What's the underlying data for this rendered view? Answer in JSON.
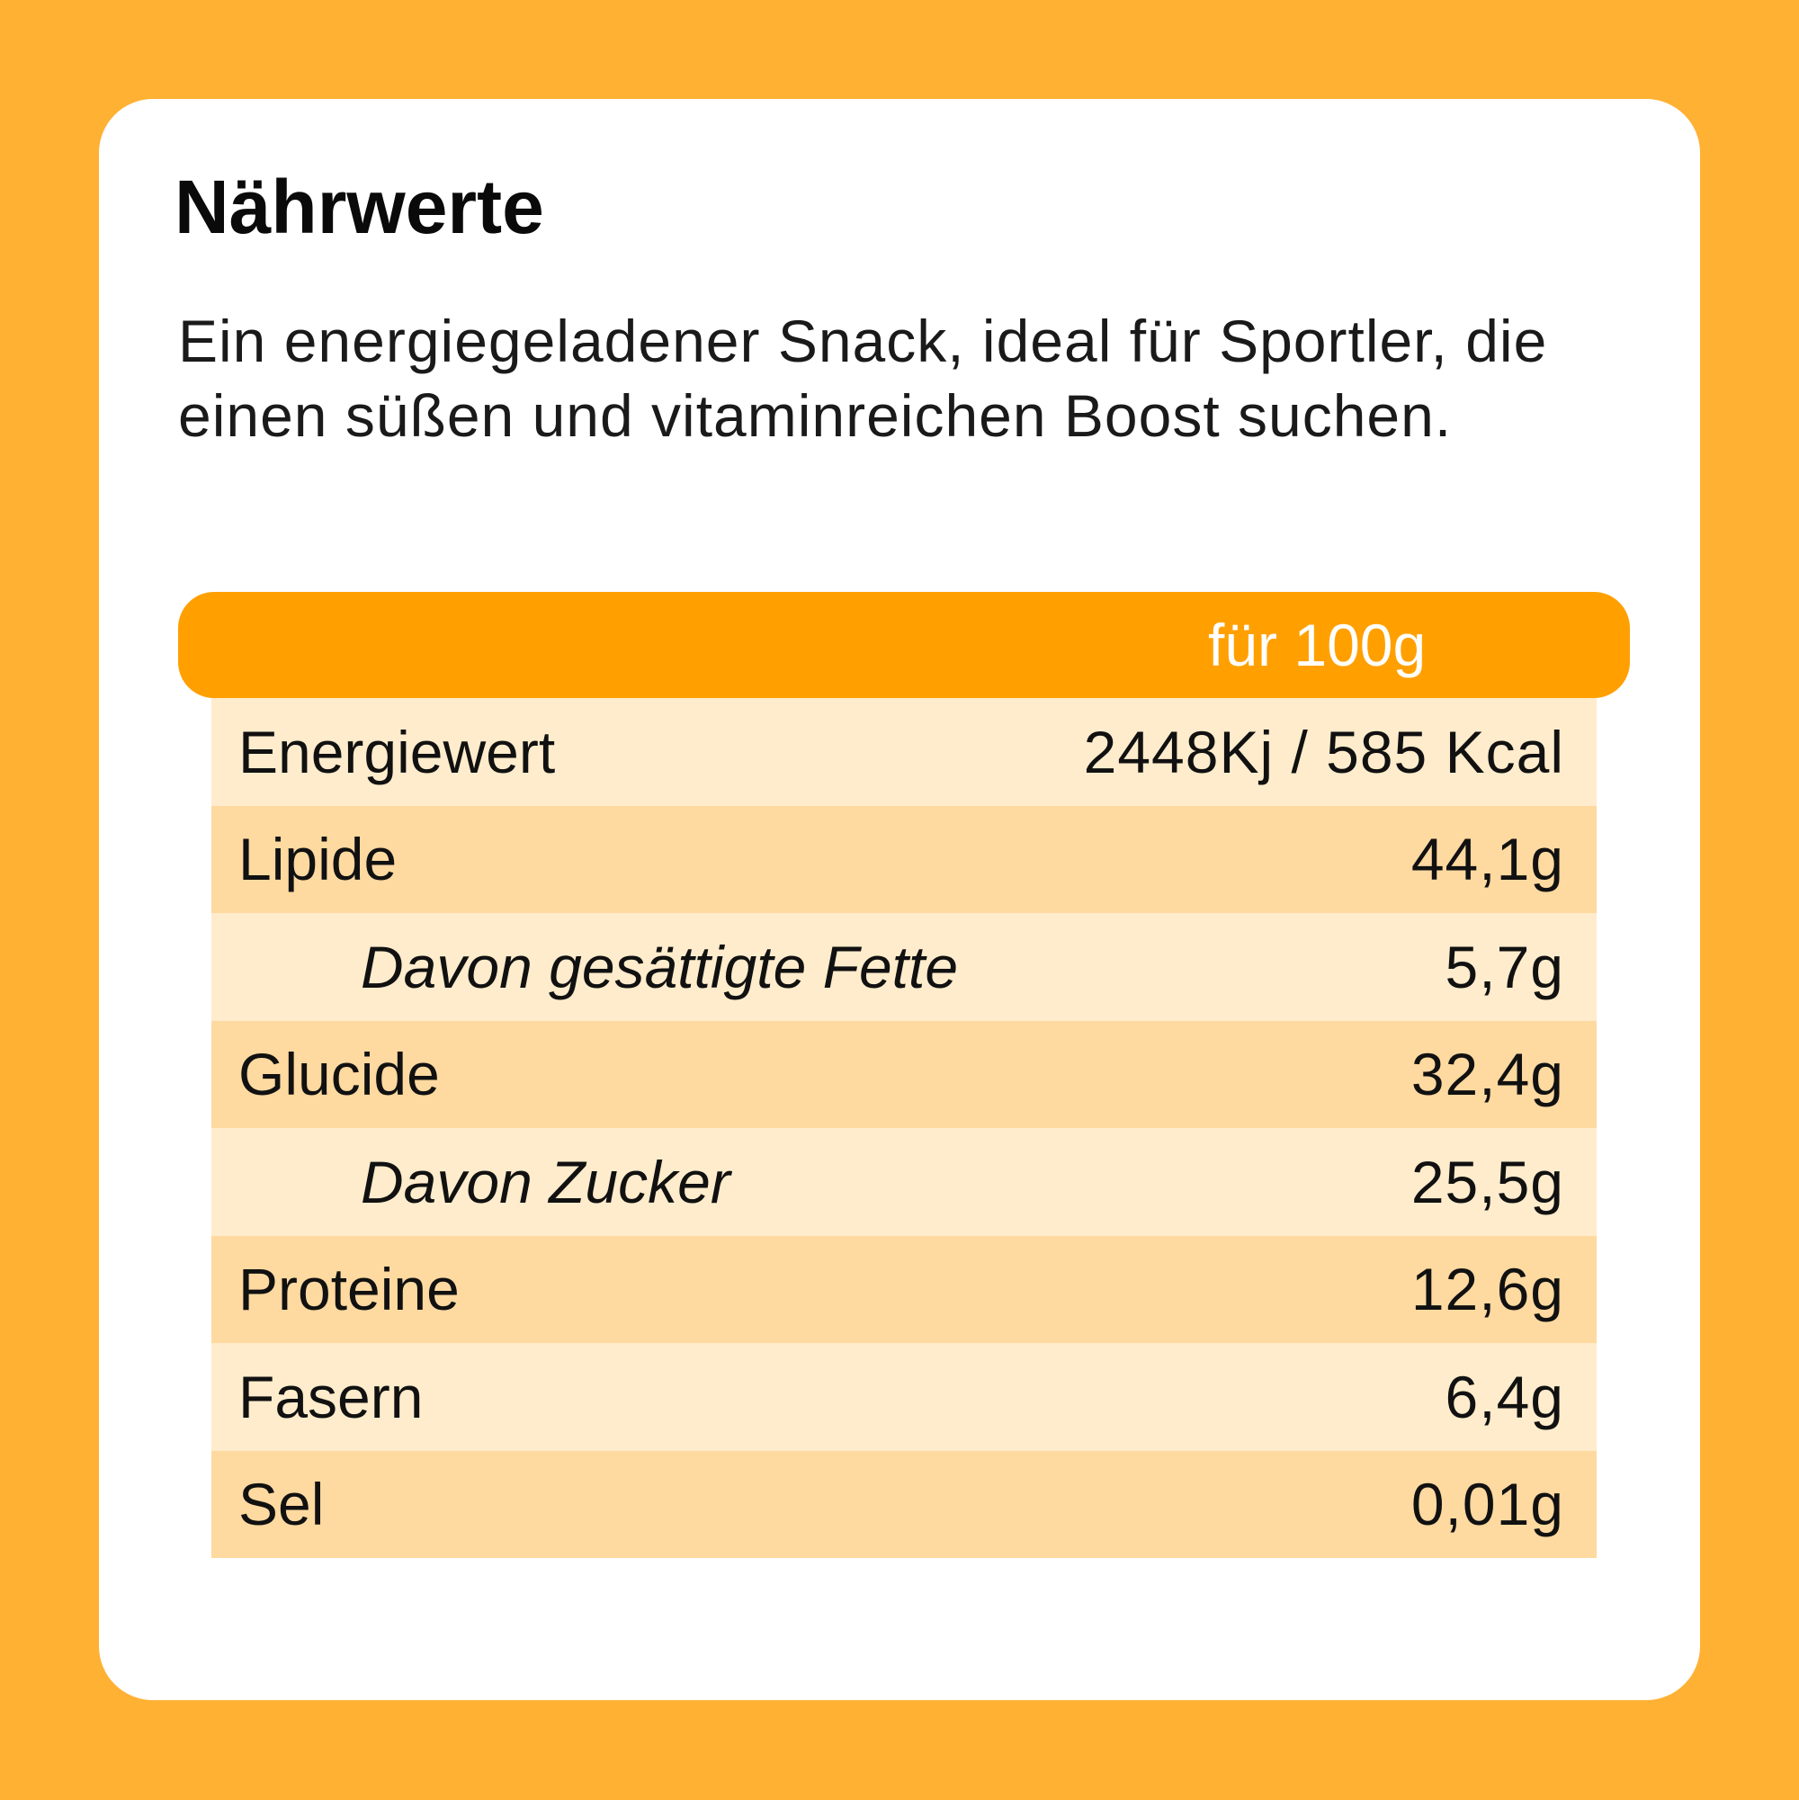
{
  "title": "Nährwerte",
  "description": "Ein energiegeladener Snack, ideal für Sportler, die einen süßen und vitaminreichen Boost suchen.",
  "table": {
    "header": "für 100g",
    "rows": [
      {
        "label": "Energiewert",
        "value": "2448Kj / 585 Kcal"
      },
      {
        "label": "Lipide",
        "value": "44,1g"
      },
      {
        "label": "Davon gesättigte Fette",
        "value": "5,7g"
      },
      {
        "label": "Glucide",
        "value": "32,4g"
      },
      {
        "label": "Davon Zucker",
        "value": "25,5g"
      },
      {
        "label": "Proteine",
        "value": "12,6g"
      },
      {
        "label": "Fasern",
        "value": "6,4g"
      },
      {
        "label": "Sel",
        "value": "0,01g"
      }
    ]
  },
  "colors": {
    "background": "#FFB133",
    "header": "#FFA000",
    "row_light": "#FFECCC",
    "row_dark": "#FED9A0"
  }
}
